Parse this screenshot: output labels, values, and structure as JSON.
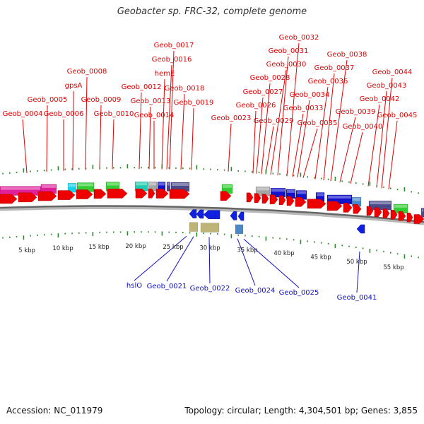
{
  "title": "Geobacter sp. FRC-32, complete genome",
  "accession": "Accession: NC_011979",
  "summary": "Topology: circular; Length: 4,304,501 bp; Genes: 3,855",
  "scale_labels": [
    "5 kbp",
    "10 kbp",
    "15 kbp",
    "20 kbp",
    "25 kbp",
    "30 kbp",
    "35 kbp",
    "40 kbp",
    "45 kbp",
    "50 kbp",
    "55 kbp"
  ],
  "colors": {
    "plus_label": "#e00000",
    "minus_label": "#1010c0",
    "cds_arrow": "#ee0000",
    "minus_arrow": "#1020e0",
    "backbone": "#666666",
    "tick": "#2a8a2a",
    "magenta": "#e0209a",
    "cyan": "#19d3ea",
    "green": "#33cc33",
    "teal": "#22ccb0",
    "gray": "#a6a6a6",
    "blue": "#1212cc",
    "slate": "#4a4a8a",
    "steel": "#4a88c8",
    "khaki": "#bfb477"
  },
  "plus_genes": [
    {
      "name": "Geob_0004"
    },
    {
      "name": "Geob_0005"
    },
    {
      "name": "Geob_0006"
    },
    {
      "name": "gpsA"
    },
    {
      "name": "Geob_0008"
    },
    {
      "name": "Geob_0009"
    },
    {
      "name": "Geob_0010"
    },
    {
      "name": "Geob_0012"
    },
    {
      "name": "Geob_0013"
    },
    {
      "name": "Geob_0014"
    },
    {
      "name": "hemE"
    },
    {
      "name": "Geob_0016"
    },
    {
      "name": "Geob_0017"
    },
    {
      "name": "Geob_0018"
    },
    {
      "name": "Geob_0019"
    },
    {
      "name": "Geob_0023"
    },
    {
      "name": "Geob_0026"
    },
    {
      "name": "Geob_0027"
    },
    {
      "name": "Geob_0028"
    },
    {
      "name": "Geob_0029"
    },
    {
      "name": "Geob_0030"
    },
    {
      "name": "Geob_0031"
    },
    {
      "name": "Geob_0032"
    },
    {
      "name": "Geob_0033"
    },
    {
      "name": "Geob_0034"
    },
    {
      "name": "Geob_0035"
    },
    {
      "name": "Geob_0036"
    },
    {
      "name": "Geob_0037"
    },
    {
      "name": "Geob_0038"
    },
    {
      "name": "Geob_0039"
    },
    {
      "name": "Geob_0040"
    },
    {
      "name": "Geob_0042"
    },
    {
      "name": "Geob_0043"
    },
    {
      "name": "Geob_0044"
    },
    {
      "name": "Geob_0045"
    }
  ],
  "minus_genes": [
    {
      "name": "hslO"
    },
    {
      "name": "Geob_0021"
    },
    {
      "name": "Geob_0022"
    },
    {
      "name": "Geob_0024"
    },
    {
      "name": "Geob_0025"
    },
    {
      "name": "Geob_0041"
    }
  ]
}
